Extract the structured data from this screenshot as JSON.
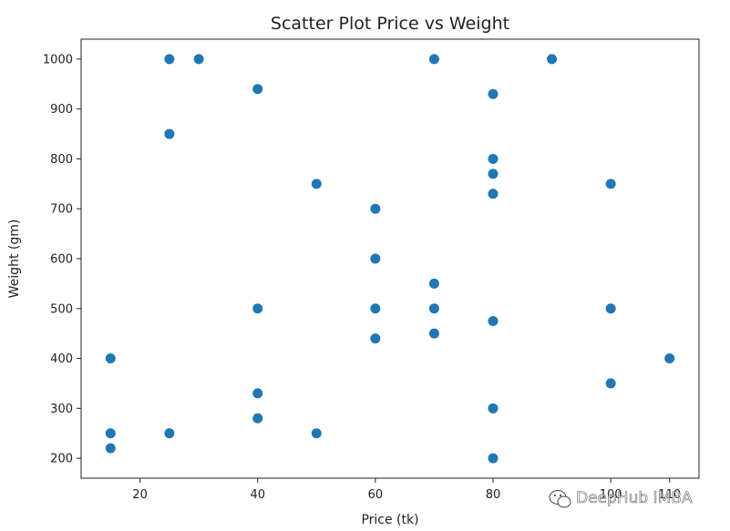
{
  "chart_data": {
    "type": "scatter",
    "title": "Scatter Plot Price vs Weight",
    "xlabel": "Price (tk)",
    "ylabel": "Weight (gm)",
    "xlim": [
      10,
      115
    ],
    "ylim": [
      160,
      1040
    ],
    "x_ticks": [
      20,
      40,
      60,
      80,
      100,
      110
    ],
    "x_tick_labels": [
      "20",
      "40",
      "60",
      "80",
      "100",
      "110"
    ],
    "y_ticks": [
      200,
      300,
      400,
      500,
      600,
      700,
      800,
      900,
      1000
    ],
    "y_tick_labels": [
      "200",
      "300",
      "400",
      "500",
      "600",
      "700",
      "800",
      "900",
      "1000"
    ],
    "grid": false,
    "marker_color": "#1f77b4",
    "points": [
      {
        "x": 25,
        "y": 1000
      },
      {
        "x": 30,
        "y": 1000
      },
      {
        "x": 70,
        "y": 1000
      },
      {
        "x": 90,
        "y": 1000
      },
      {
        "x": 40,
        "y": 940
      },
      {
        "x": 80,
        "y": 930
      },
      {
        "x": 25,
        "y": 850
      },
      {
        "x": 80,
        "y": 800
      },
      {
        "x": 80,
        "y": 770
      },
      {
        "x": 50,
        "y": 750
      },
      {
        "x": 100,
        "y": 750
      },
      {
        "x": 80,
        "y": 730
      },
      {
        "x": 60,
        "y": 700
      },
      {
        "x": 60,
        "y": 600
      },
      {
        "x": 70,
        "y": 550
      },
      {
        "x": 40,
        "y": 500
      },
      {
        "x": 60,
        "y": 500
      },
      {
        "x": 70,
        "y": 500
      },
      {
        "x": 100,
        "y": 500
      },
      {
        "x": 80,
        "y": 475
      },
      {
        "x": 70,
        "y": 450
      },
      {
        "x": 60,
        "y": 440
      },
      {
        "x": 15,
        "y": 400
      },
      {
        "x": 110,
        "y": 400
      },
      {
        "x": 100,
        "y": 350
      },
      {
        "x": 40,
        "y": 330
      },
      {
        "x": 80,
        "y": 300
      },
      {
        "x": 40,
        "y": 280
      },
      {
        "x": 15,
        "y": 250
      },
      {
        "x": 25,
        "y": 250
      },
      {
        "x": 50,
        "y": 250
      },
      {
        "x": 15,
        "y": 220
      },
      {
        "x": 80,
        "y": 200
      }
    ]
  },
  "watermark": {
    "text": "DeepHub IMBA",
    "icon": "wechat-icon"
  }
}
